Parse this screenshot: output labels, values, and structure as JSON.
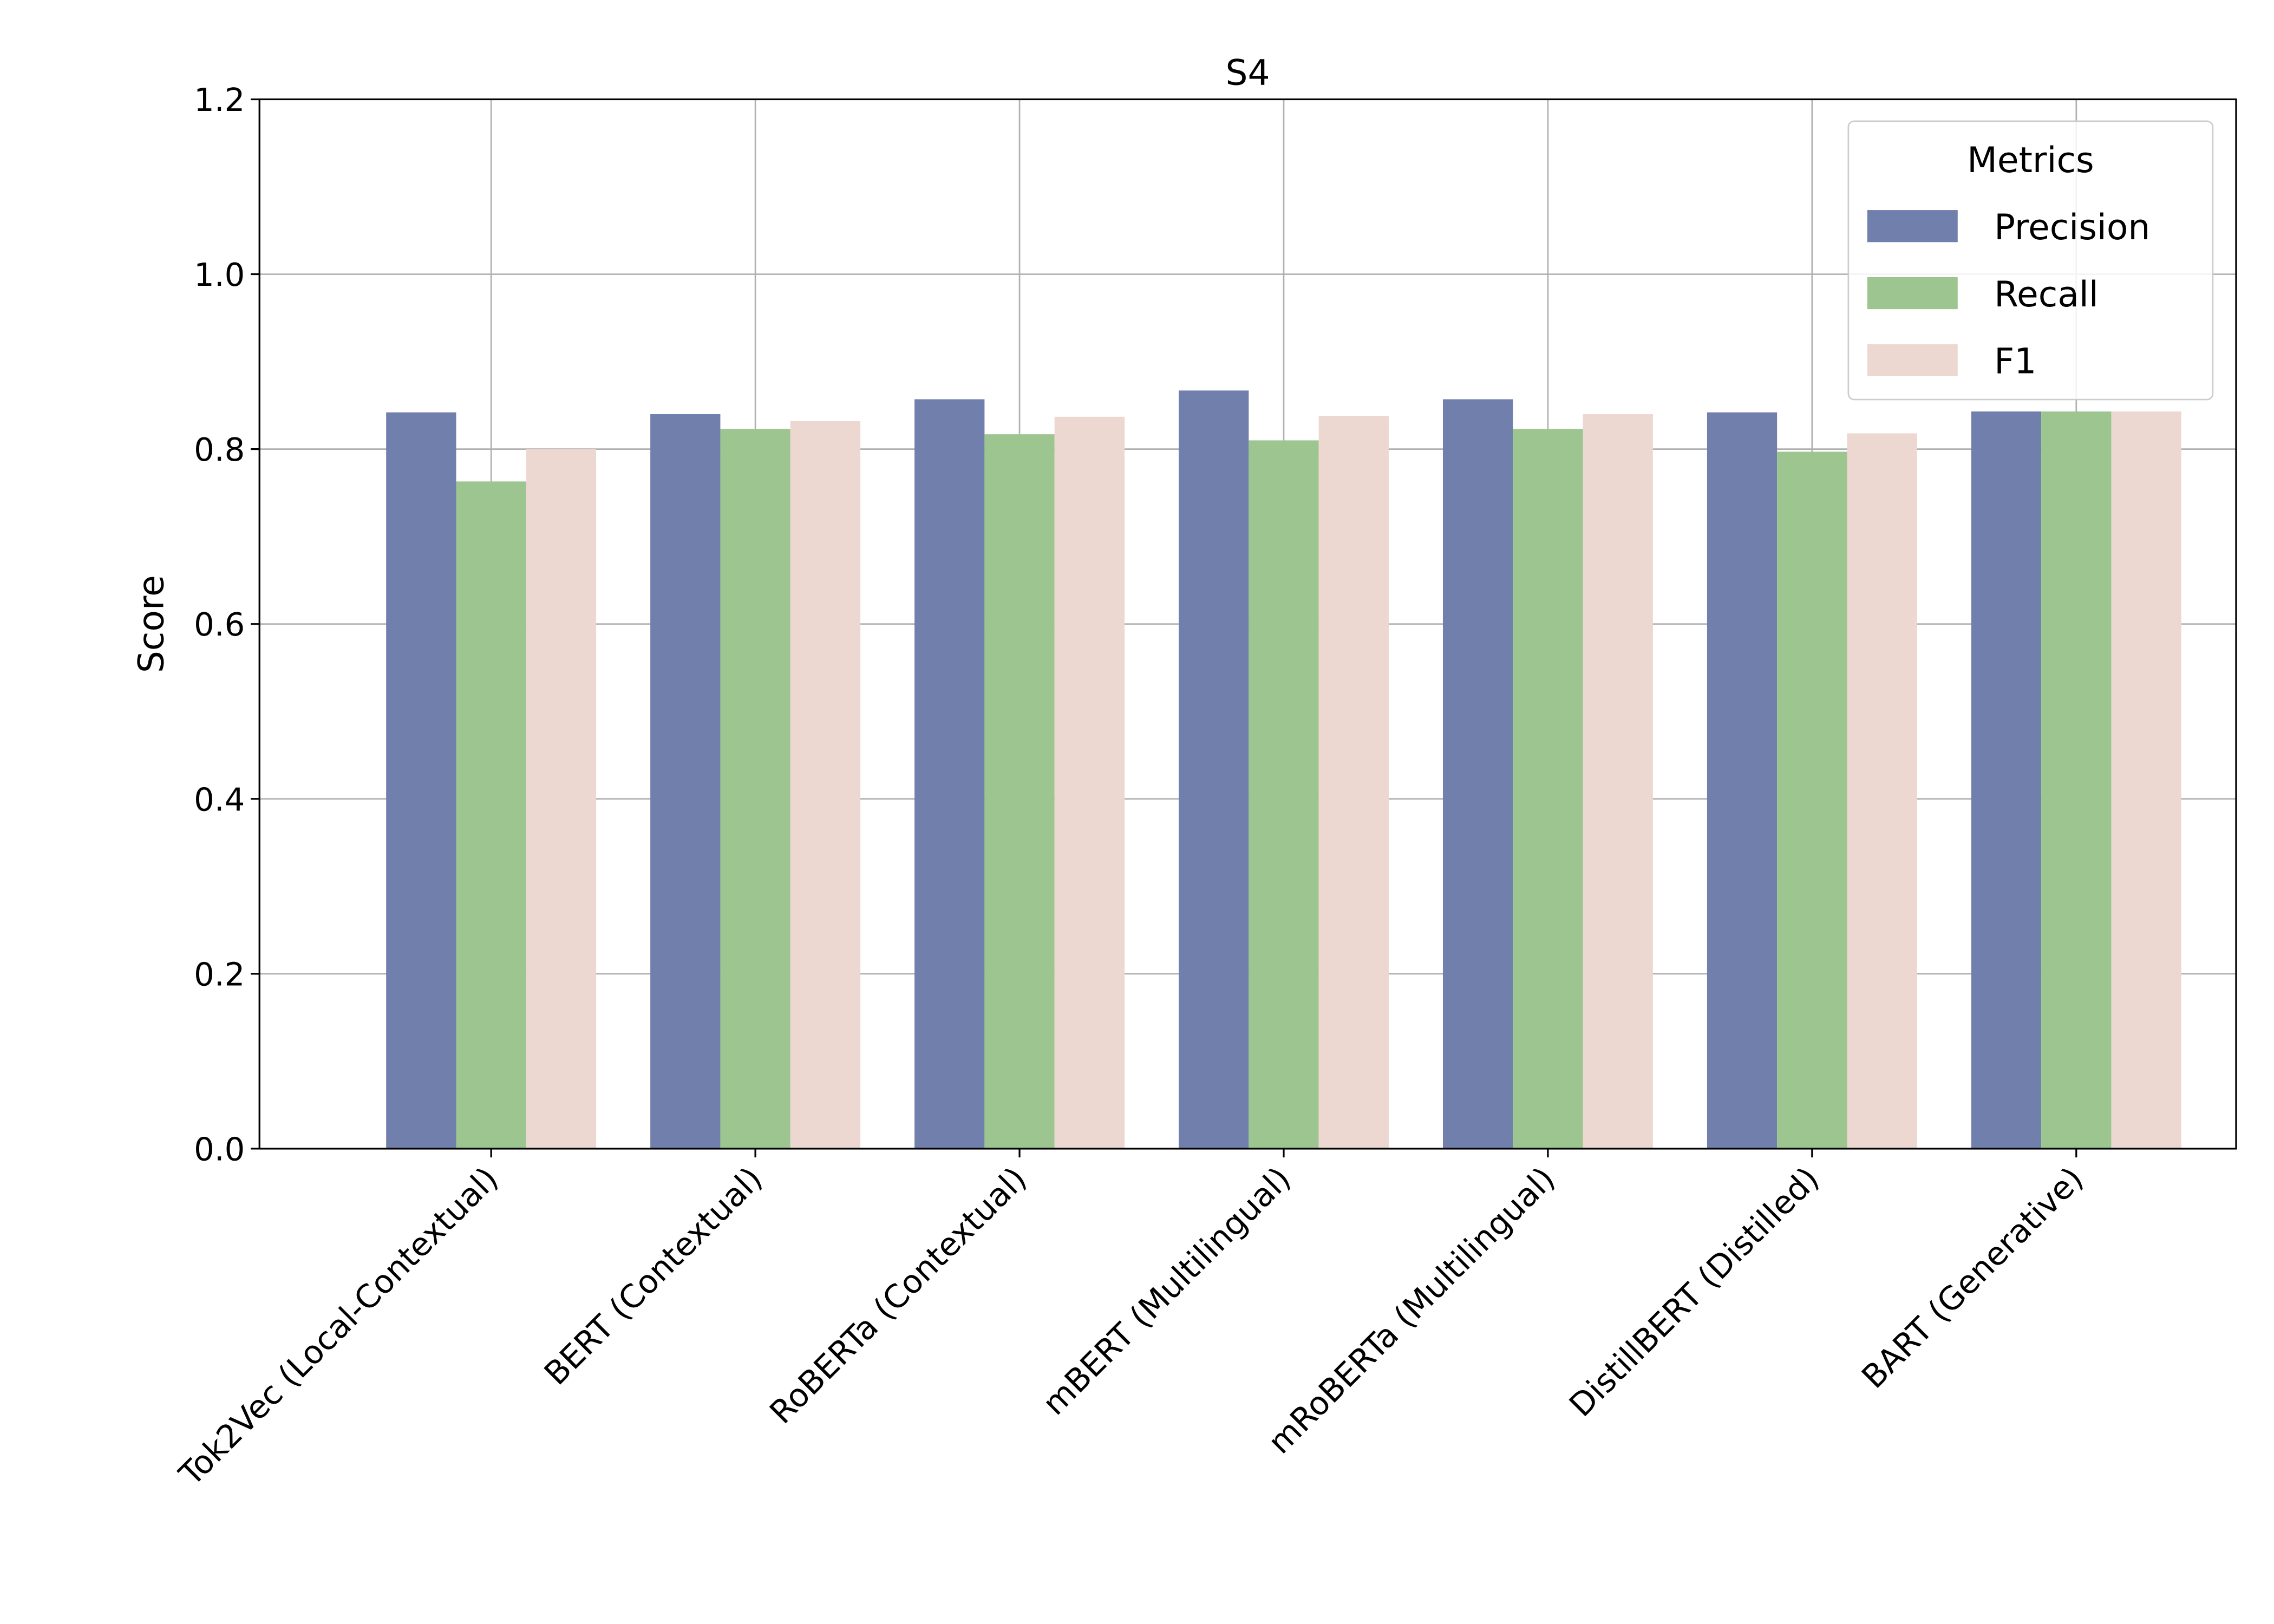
{
  "chart_data": {
    "type": "bar",
    "title": "S4",
    "xlabel": "",
    "ylabel": "Score",
    "ylim": [
      0,
      1.2
    ],
    "yticks": [
      "0.0",
      "0.2",
      "0.4",
      "0.6",
      "0.8",
      "1.0",
      "1.2"
    ],
    "grid": true,
    "legend_title": "Metrics",
    "legend_position": "top-right",
    "categories": [
      "Tok2Vec (Local-Contextual)",
      "BERT (Contextual)",
      "RoBERTa (Contextual)",
      "mBERT (Multilingual)",
      "mRoBERTa (Multilingual)",
      "DistillBERT (Distilled)",
      "BART (Generative)"
    ],
    "series": [
      {
        "name": "Precision",
        "color": "#717fac",
        "values": [
          0.842,
          0.84,
          0.857,
          0.867,
          0.857,
          0.842,
          0.843
        ]
      },
      {
        "name": "Recall",
        "color": "#9dc590",
        "values": [
          0.763,
          0.823,
          0.817,
          0.81,
          0.823,
          0.797,
          0.843
        ]
      },
      {
        "name": "F1",
        "color": "#ecd8d0",
        "values": [
          0.8,
          0.832,
          0.837,
          0.838,
          0.84,
          0.818,
          0.843
        ]
      }
    ]
  }
}
